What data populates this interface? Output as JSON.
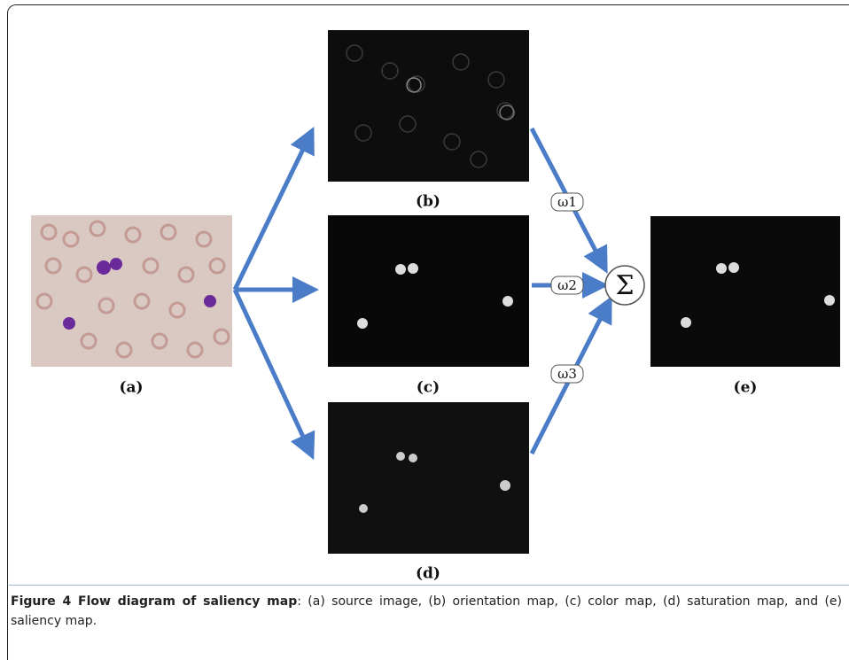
{
  "figure": {
    "panels": [
      {
        "label": "(a)"
      },
      {
        "label": "(b)"
      },
      {
        "label": "(c)"
      },
      {
        "label": "(d)"
      },
      {
        "label": "(e)"
      }
    ],
    "weights": [
      "ω1",
      "ω2",
      "ω3"
    ],
    "sum_symbol": "Σ",
    "caption": {
      "title": "Figure 4 Flow diagram of saliency map",
      "text": ": (a) source image, (b) orientation map, (c) color map, (d) saturation map, and (e) saliency map."
    }
  }
}
